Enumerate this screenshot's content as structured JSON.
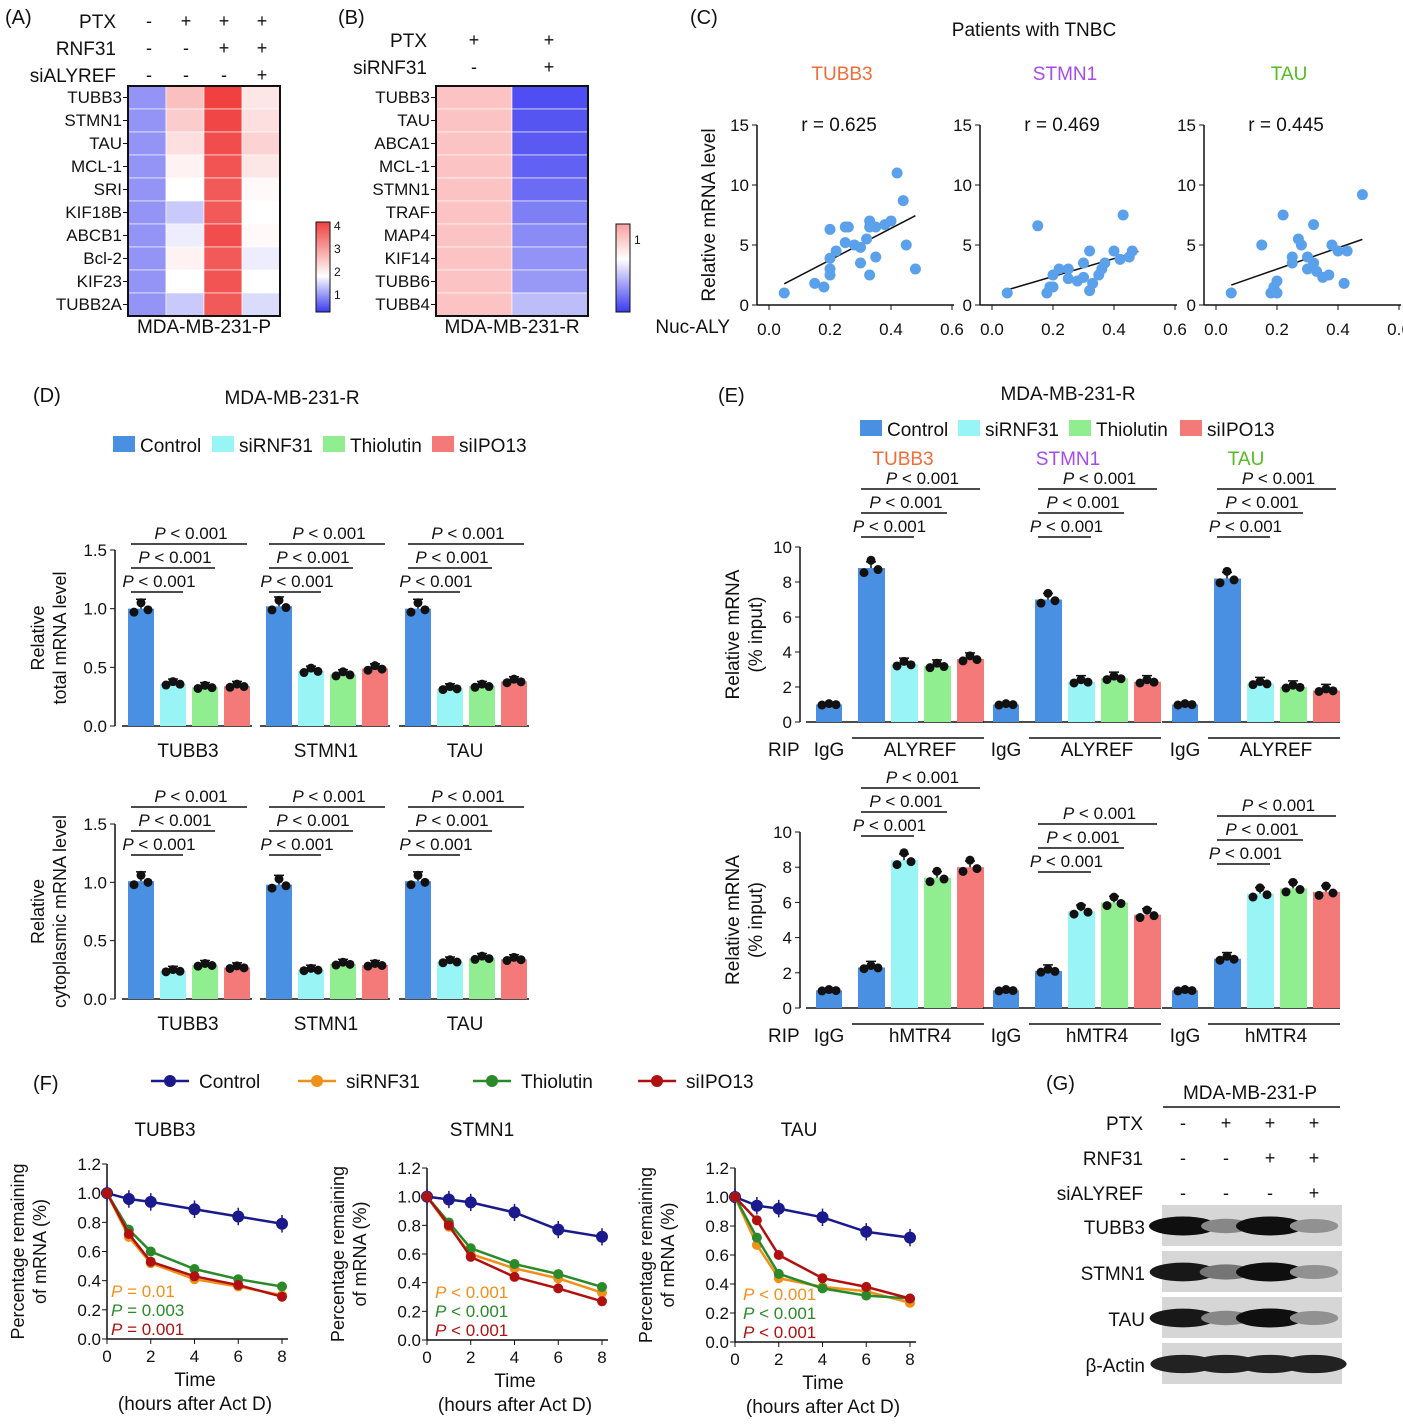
{
  "panels": {
    "A": {
      "letter": "(A)",
      "rows": [
        "PTX",
        "RNF31",
        "siALYREF"
      ],
      "signs": [
        [
          "-",
          "+",
          "+",
          "+"
        ],
        [
          "-",
          "-",
          "+",
          "+"
        ],
        [
          "-",
          "-",
          "-",
          "+"
        ]
      ],
      "genes": [
        "TUBB3",
        "STMN1",
        "TAU",
        "MCL-1",
        "SRI",
        "KIF18B",
        "ABCB1",
        "Bcl-2",
        "KIF23",
        "TUBB2A"
      ],
      "xlabel": "MDA-MB-231-P",
      "values": [
        [
          1,
          2.6,
          4.6,
          2.0
        ],
        [
          1,
          2.4,
          4.5,
          2.1
        ],
        [
          1,
          2.1,
          4.4,
          2.3
        ],
        [
          1,
          1.8,
          4.3,
          2.0
        ],
        [
          1,
          1.6,
          4.2,
          1.7
        ],
        [
          1,
          1.3,
          4.2,
          1.6
        ],
        [
          1,
          1.5,
          4.4,
          1.7
        ],
        [
          1,
          1.8,
          4.2,
          1.5
        ],
        [
          1,
          1.6,
          4.3,
          1.6
        ],
        [
          1,
          1.3,
          4.2,
          1.4
        ]
      ],
      "scale_ticks": [
        "4",
        "3",
        "2",
        "1"
      ]
    },
    "B": {
      "letter": "(B)",
      "rows": [
        "PTX",
        "siRNF31"
      ],
      "signs": [
        [
          "+",
          "+"
        ],
        [
          "-",
          "+"
        ]
      ],
      "genes": [
        "TUBB3",
        "TAU",
        "ABCA1",
        "MCL-1",
        "STMN1",
        "TRAF",
        "MAP4",
        "KIF14",
        "TUBB6",
        "TUBB4"
      ],
      "xlabel": "MDA-MB-231-R",
      "values": [
        [
          1,
          0.3
        ],
        [
          1,
          0.33
        ],
        [
          1,
          0.35
        ],
        [
          1,
          0.38
        ],
        [
          1,
          0.42
        ],
        [
          1,
          0.5
        ],
        [
          1,
          0.55
        ],
        [
          1,
          0.58
        ],
        [
          1,
          0.6
        ],
        [
          1,
          0.75
        ]
      ],
      "scale_ticks": [
        "1"
      ]
    },
    "C": {
      "letter": "(C)",
      "title": "Patients with TNBC",
      "genes": [
        "TUBB3",
        "STMN1",
        "TAU"
      ],
      "gene_colors": [
        "#f26b3a",
        "#a64bf0",
        "#55bb22"
      ],
      "r_labels": [
        "r = 0.625",
        "r = 0.469",
        "r = 0.445"
      ],
      "ylabel": "Relative mRNA level",
      "xlabel": "Nuc-ALY",
      "xticks": [
        "0.0",
        "0.2",
        "0.4",
        "0.6"
      ],
      "yticks": [
        "0",
        "5",
        "10",
        "15"
      ]
    },
    "D": {
      "letter": "(D)",
      "title": "MDA-MB-231-R",
      "legend": [
        "Control",
        "siRNF31",
        "Thiolutin",
        "siIPO13"
      ],
      "ylabel_top": [
        "Relative",
        "total mRNA level"
      ],
      "ylabel_bottom": [
        "Relative",
        "cytoplasmic mRNA level"
      ],
      "genes": [
        "TUBB3",
        "STMN1",
        "TAU"
      ],
      "yticks": [
        "0.0",
        "0.5",
        "1.0",
        "1.5"
      ],
      "p_labels": [
        "P < 0.001",
        "P < 0.001",
        "P < 0.001"
      ]
    },
    "E": {
      "letter": "(E)",
      "title": "MDA-MB-231-R",
      "legend": [
        "Control",
        "siRNF31",
        "Thiolutin",
        "siIPO13"
      ],
      "genes": [
        "TUBB3",
        "STMN1",
        "TAU"
      ],
      "ylabel": [
        "Relative mRNA",
        "(% input)"
      ],
      "yticks": [
        "0",
        "2",
        "4",
        "6",
        "8",
        "10"
      ],
      "rip": "RIP",
      "igg": "IgG",
      "target_top": "ALYREF",
      "target_bottom": "hMTR4",
      "p_labels": [
        "P < 0.001",
        "P < 0.001",
        "P < 0.001"
      ]
    },
    "F": {
      "letter": "(F)",
      "legend": [
        "Control",
        "siRNF31",
        "Thiolutin",
        "siIPO13"
      ],
      "genes": [
        "TUBB3",
        "STMN1",
        "TAU"
      ],
      "ylabel": [
        "Percentage remaining",
        "of mRNA (%)"
      ],
      "xlabel": [
        "Time",
        "(hours after Act D)"
      ],
      "xticks": [
        "0",
        "2",
        "4",
        "6",
        "8"
      ],
      "yticks": [
        "0.0",
        "0.2",
        "0.4",
        "0.6",
        "0.8",
        "1.0",
        "1.2"
      ],
      "p_text": [
        [
          "P = 0.01",
          "P = 0.003",
          "P = 0.001"
        ],
        [
          "P < 0.001",
          "P < 0.001",
          "P < 0.001"
        ],
        [
          "P < 0.001",
          "P < 0.001",
          "P < 0.001"
        ]
      ]
    },
    "G": {
      "letter": "(G)",
      "title": "MDA-MB-231-P",
      "rows": [
        "PTX",
        "RNF31",
        "siALYREF"
      ],
      "signs": [
        [
          "-",
          "+",
          "+",
          "+"
        ],
        [
          "-",
          "-",
          "+",
          "+"
        ],
        [
          "-",
          "-",
          "-",
          "+"
        ]
      ],
      "blots": [
        "TUBB3",
        "STMN1",
        "TAU",
        "β-Actin"
      ],
      "intensity": [
        [
          1,
          0.35,
          1,
          0.3
        ],
        [
          0.95,
          0.45,
          1,
          0.3
        ],
        [
          0.95,
          0.35,
          1,
          0.3
        ],
        [
          0.9,
          0.9,
          0.9,
          0.9
        ]
      ]
    }
  },
  "colors": {
    "control": "#4a90e2",
    "sirnf31": "#99f5f5",
    "thiolutin": "#90ee90",
    "siipo13": "#f47a7a",
    "line_control": "#1a1a8c",
    "line_sirnf31": "#f0901a",
    "line_thiolutin": "#2a8a2a",
    "line_siipo13": "#b01010",
    "scatter": "#5aa0ea"
  },
  "chart_data": [
    {
      "type": "heatmap",
      "panel": "A",
      "categories": [
        "TUBB3",
        "STMN1",
        "TAU",
        "MCL-1",
        "SRI",
        "KIF18B",
        "ABCB1",
        "Bcl-2",
        "KIF23",
        "TUBB2A"
      ],
      "columns": 4,
      "zlim": [
        0.5,
        4.5
      ]
    },
    {
      "type": "heatmap",
      "panel": "B",
      "categories": [
        "TUBB3",
        "TAU",
        "ABCA1",
        "MCL-1",
        "STMN1",
        "TRAF",
        "MAP4",
        "KIF14",
        "TUBB6",
        "TUBB4"
      ],
      "columns": 2,
      "zlim": [
        0,
        1.2
      ]
    },
    {
      "type": "scatter",
      "panel": "C",
      "title": "TUBB3",
      "xlim": [
        0,
        0.6
      ],
      "ylim": [
        0,
        15
      ],
      "points": [
        [
          0.05,
          1
        ],
        [
          0.15,
          1.8
        ],
        [
          0.18,
          1.5
        ],
        [
          0.2,
          3.9
        ],
        [
          0.2,
          3
        ],
        [
          0.2,
          2.5
        ],
        [
          0.22,
          4.5
        ],
        [
          0.25,
          5.2
        ],
        [
          0.25,
          6.5
        ],
        [
          0.2,
          6.3
        ],
        [
          0.26,
          6.5
        ],
        [
          0.28,
          5
        ],
        [
          0.3,
          4.8
        ],
        [
          0.32,
          5.5
        ],
        [
          0.33,
          7
        ],
        [
          0.33,
          6.5
        ],
        [
          0.35,
          6.5
        ],
        [
          0.35,
          4
        ],
        [
          0.3,
          3.5
        ],
        [
          0.33,
          2.5
        ],
        [
          0.38,
          6.7
        ],
        [
          0.4,
          7
        ],
        [
          0.42,
          11
        ],
        [
          0.44,
          8.7
        ],
        [
          0.45,
          5
        ],
        [
          0.48,
          3
        ]
      ]
    },
    {
      "type": "scatter",
      "panel": "C",
      "title": "STMN1",
      "xlim": [
        0,
        0.6
      ],
      "ylim": [
        0,
        15
      ],
      "points": [
        [
          0.05,
          1
        ],
        [
          0.15,
          6.6
        ],
        [
          0.18,
          1
        ],
        [
          0.19,
          1.5
        ],
        [
          0.2,
          1.5
        ],
        [
          0.2,
          2.5
        ],
        [
          0.22,
          3
        ],
        [
          0.25,
          3
        ],
        [
          0.25,
          2.2
        ],
        [
          0.28,
          2
        ],
        [
          0.3,
          3.5
        ],
        [
          0.32,
          4.5
        ],
        [
          0.32,
          1.2
        ],
        [
          0.35,
          2.5
        ],
        [
          0.37,
          3.5
        ],
        [
          0.4,
          4.5
        ],
        [
          0.42,
          3.8
        ],
        [
          0.43,
          7.5
        ],
        [
          0.45,
          4
        ],
        [
          0.46,
          4.5
        ],
        [
          0.3,
          2.3
        ],
        [
          0.33,
          1.8
        ],
        [
          0.36,
          3
        ]
      ]
    },
    {
      "type": "scatter",
      "panel": "C",
      "title": "TAU",
      "xlim": [
        0,
        0.6
      ],
      "ylim": [
        0,
        15
      ],
      "points": [
        [
          0.05,
          1
        ],
        [
          0.15,
          5
        ],
        [
          0.18,
          1
        ],
        [
          0.19,
          1.5
        ],
        [
          0.2,
          1
        ],
        [
          0.2,
          2
        ],
        [
          0.22,
          7.5
        ],
        [
          0.25,
          4
        ],
        [
          0.25,
          3.5
        ],
        [
          0.27,
          5.5
        ],
        [
          0.28,
          5
        ],
        [
          0.3,
          4
        ],
        [
          0.32,
          6.7
        ],
        [
          0.32,
          3.5
        ],
        [
          0.33,
          2.8
        ],
        [
          0.35,
          2.3
        ],
        [
          0.37,
          2.5
        ],
        [
          0.38,
          5
        ],
        [
          0.4,
          4.5
        ],
        [
          0.42,
          1.8
        ],
        [
          0.43,
          4.5
        ],
        [
          0.48,
          9.2
        ],
        [
          0.3,
          3
        ]
      ]
    },
    {
      "type": "bar",
      "panel": "D-top",
      "categories": [
        "TUBB3",
        "STMN1",
        "TAU"
      ],
      "ylim": [
        0,
        1.5
      ],
      "series": [
        {
          "name": "Control",
          "values": [
            1.0,
            1.02,
            1.0
          ]
        },
        {
          "name": "siRNF31",
          "values": [
            0.36,
            0.47,
            0.32
          ]
        },
        {
          "name": "Thiolutin",
          "values": [
            0.33,
            0.44,
            0.34
          ]
        },
        {
          "name": "siIPO13",
          "values": [
            0.34,
            0.49,
            0.38
          ]
        }
      ]
    },
    {
      "type": "bar",
      "panel": "D-bottom",
      "categories": [
        "TUBB3",
        "STMN1",
        "TAU"
      ],
      "ylim": [
        0,
        1.5
      ],
      "series": [
        {
          "name": "Control",
          "values": [
            1.01,
            0.98,
            1.01
          ]
        },
        {
          "name": "siRNF31",
          "values": [
            0.24,
            0.25,
            0.32
          ]
        },
        {
          "name": "Thiolutin",
          "values": [
            0.29,
            0.3,
            0.35
          ]
        },
        {
          "name": "siIPO13",
          "values": [
            0.27,
            0.29,
            0.34
          ]
        }
      ]
    },
    {
      "type": "bar",
      "panel": "E-top",
      "categories": [
        "TUBB3",
        "STMN1",
        "TAU"
      ],
      "ylim": [
        0,
        10
      ],
      "igg": [
        1,
        1,
        1
      ],
      "series": [
        {
          "name": "Control",
          "values": [
            8.8,
            7.0,
            8.2
          ]
        },
        {
          "name": "siRNF31",
          "values": [
            3.3,
            2.3,
            2.2
          ]
        },
        {
          "name": "Thiolutin",
          "values": [
            3.2,
            2.5,
            2.0
          ]
        },
        {
          "name": "siIPO13",
          "values": [
            3.6,
            2.3,
            1.8
          ]
        }
      ]
    },
    {
      "type": "bar",
      "panel": "E-bottom",
      "categories": [
        "TUBB3",
        "STMN1",
        "TAU"
      ],
      "ylim": [
        0,
        10
      ],
      "igg": [
        1,
        1,
        1
      ],
      "series": [
        {
          "name": "Control",
          "values": [
            2.3,
            2.1,
            2.8
          ]
        },
        {
          "name": "siRNF31",
          "values": [
            8.4,
            5.5,
            6.5
          ]
        },
        {
          "name": "Thiolutin",
          "values": [
            7.4,
            6.0,
            6.8
          ]
        },
        {
          "name": "siIPO13",
          "values": [
            8.0,
            5.3,
            6.6
          ]
        }
      ]
    },
    {
      "type": "line",
      "panel": "F",
      "title": "TUBB3",
      "x": [
        0,
        1,
        2,
        4,
        6,
        8
      ],
      "ylim": [
        0,
        1.2
      ],
      "series": [
        {
          "name": "Control",
          "values": [
            1.0,
            0.96,
            0.94,
            0.89,
            0.84,
            0.79
          ]
        },
        {
          "name": "siRNF31",
          "values": [
            1.0,
            0.7,
            0.52,
            0.41,
            0.36,
            0.3
          ]
        },
        {
          "name": "Thiolutin",
          "values": [
            1.0,
            0.75,
            0.6,
            0.48,
            0.41,
            0.36
          ]
        },
        {
          "name": "siIPO13",
          "values": [
            1.0,
            0.72,
            0.53,
            0.43,
            0.37,
            0.29
          ]
        }
      ]
    },
    {
      "type": "line",
      "panel": "F",
      "title": "STMN1",
      "x": [
        0,
        1,
        2,
        4,
        6,
        8
      ],
      "ylim": [
        0,
        1.2
      ],
      "series": [
        {
          "name": "Control",
          "values": [
            1.0,
            0.98,
            0.96,
            0.89,
            0.77,
            0.72
          ]
        },
        {
          "name": "siRNF31",
          "values": [
            1.0,
            0.79,
            0.6,
            0.5,
            0.43,
            0.33
          ]
        },
        {
          "name": "Thiolutin",
          "values": [
            1.0,
            0.82,
            0.64,
            0.53,
            0.46,
            0.37
          ]
        },
        {
          "name": "siIPO13",
          "values": [
            1.0,
            0.8,
            0.58,
            0.44,
            0.36,
            0.27
          ]
        }
      ]
    },
    {
      "type": "line",
      "panel": "F",
      "title": "TAU",
      "x": [
        0,
        1,
        2,
        4,
        6,
        8
      ],
      "ylim": [
        0,
        1.2
      ],
      "series": [
        {
          "name": "Control",
          "values": [
            1.0,
            0.94,
            0.92,
            0.86,
            0.76,
            0.72
          ]
        },
        {
          "name": "siRNF31",
          "values": [
            1.0,
            0.67,
            0.44,
            0.38,
            0.35,
            0.27
          ]
        },
        {
          "name": "Thiolutin",
          "values": [
            1.0,
            0.72,
            0.47,
            0.37,
            0.32,
            0.3
          ]
        },
        {
          "name": "siIPO13",
          "values": [
            1.0,
            0.84,
            0.6,
            0.44,
            0.38,
            0.3
          ]
        }
      ]
    }
  ]
}
